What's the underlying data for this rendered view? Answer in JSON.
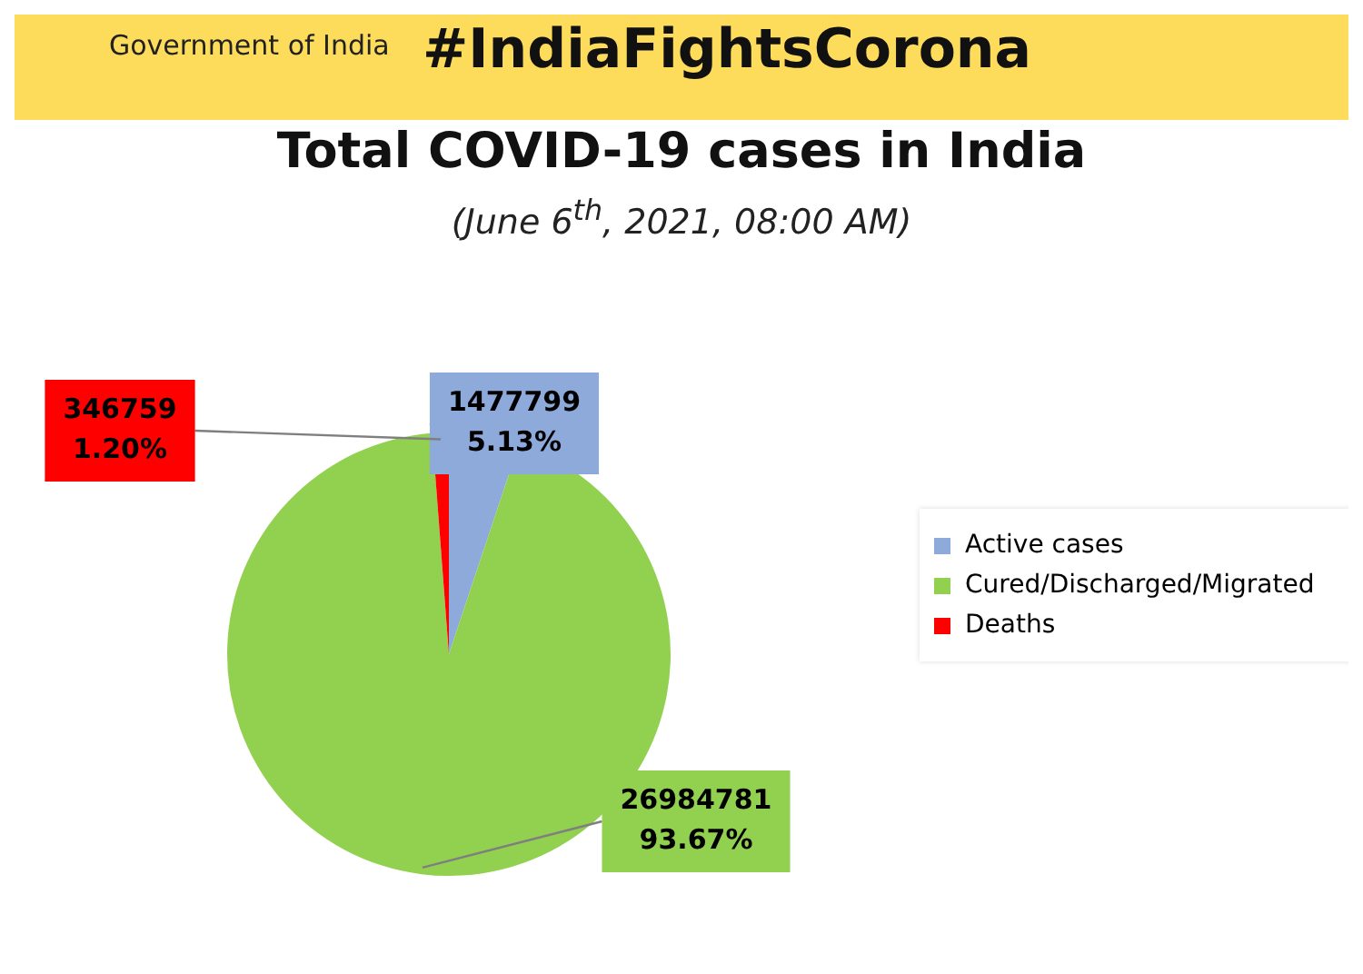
{
  "chart_data": {
    "type": "pie",
    "title": "Total COVID-19 cases in India",
    "subtitle": "(June 6$^{th}$, 2021, 08:00 AM)",
    "annotations": [
      "Government of India",
      "#IndiaFightsCorona"
    ],
    "categories": [
      "Active cases",
      "Cured/Discharged/Migrated",
      "Deaths"
    ],
    "values": [
      1477799,
      26984781,
      346759
    ],
    "colors": [
      "#8eaadb",
      "#92d050",
      "#ff0000"
    ],
    "value_labels": [
      "1477799\n5.13%",
      "26984781\n93.67%",
      "346759\n1.20%"
    ],
    "legend": "right"
  }
}
